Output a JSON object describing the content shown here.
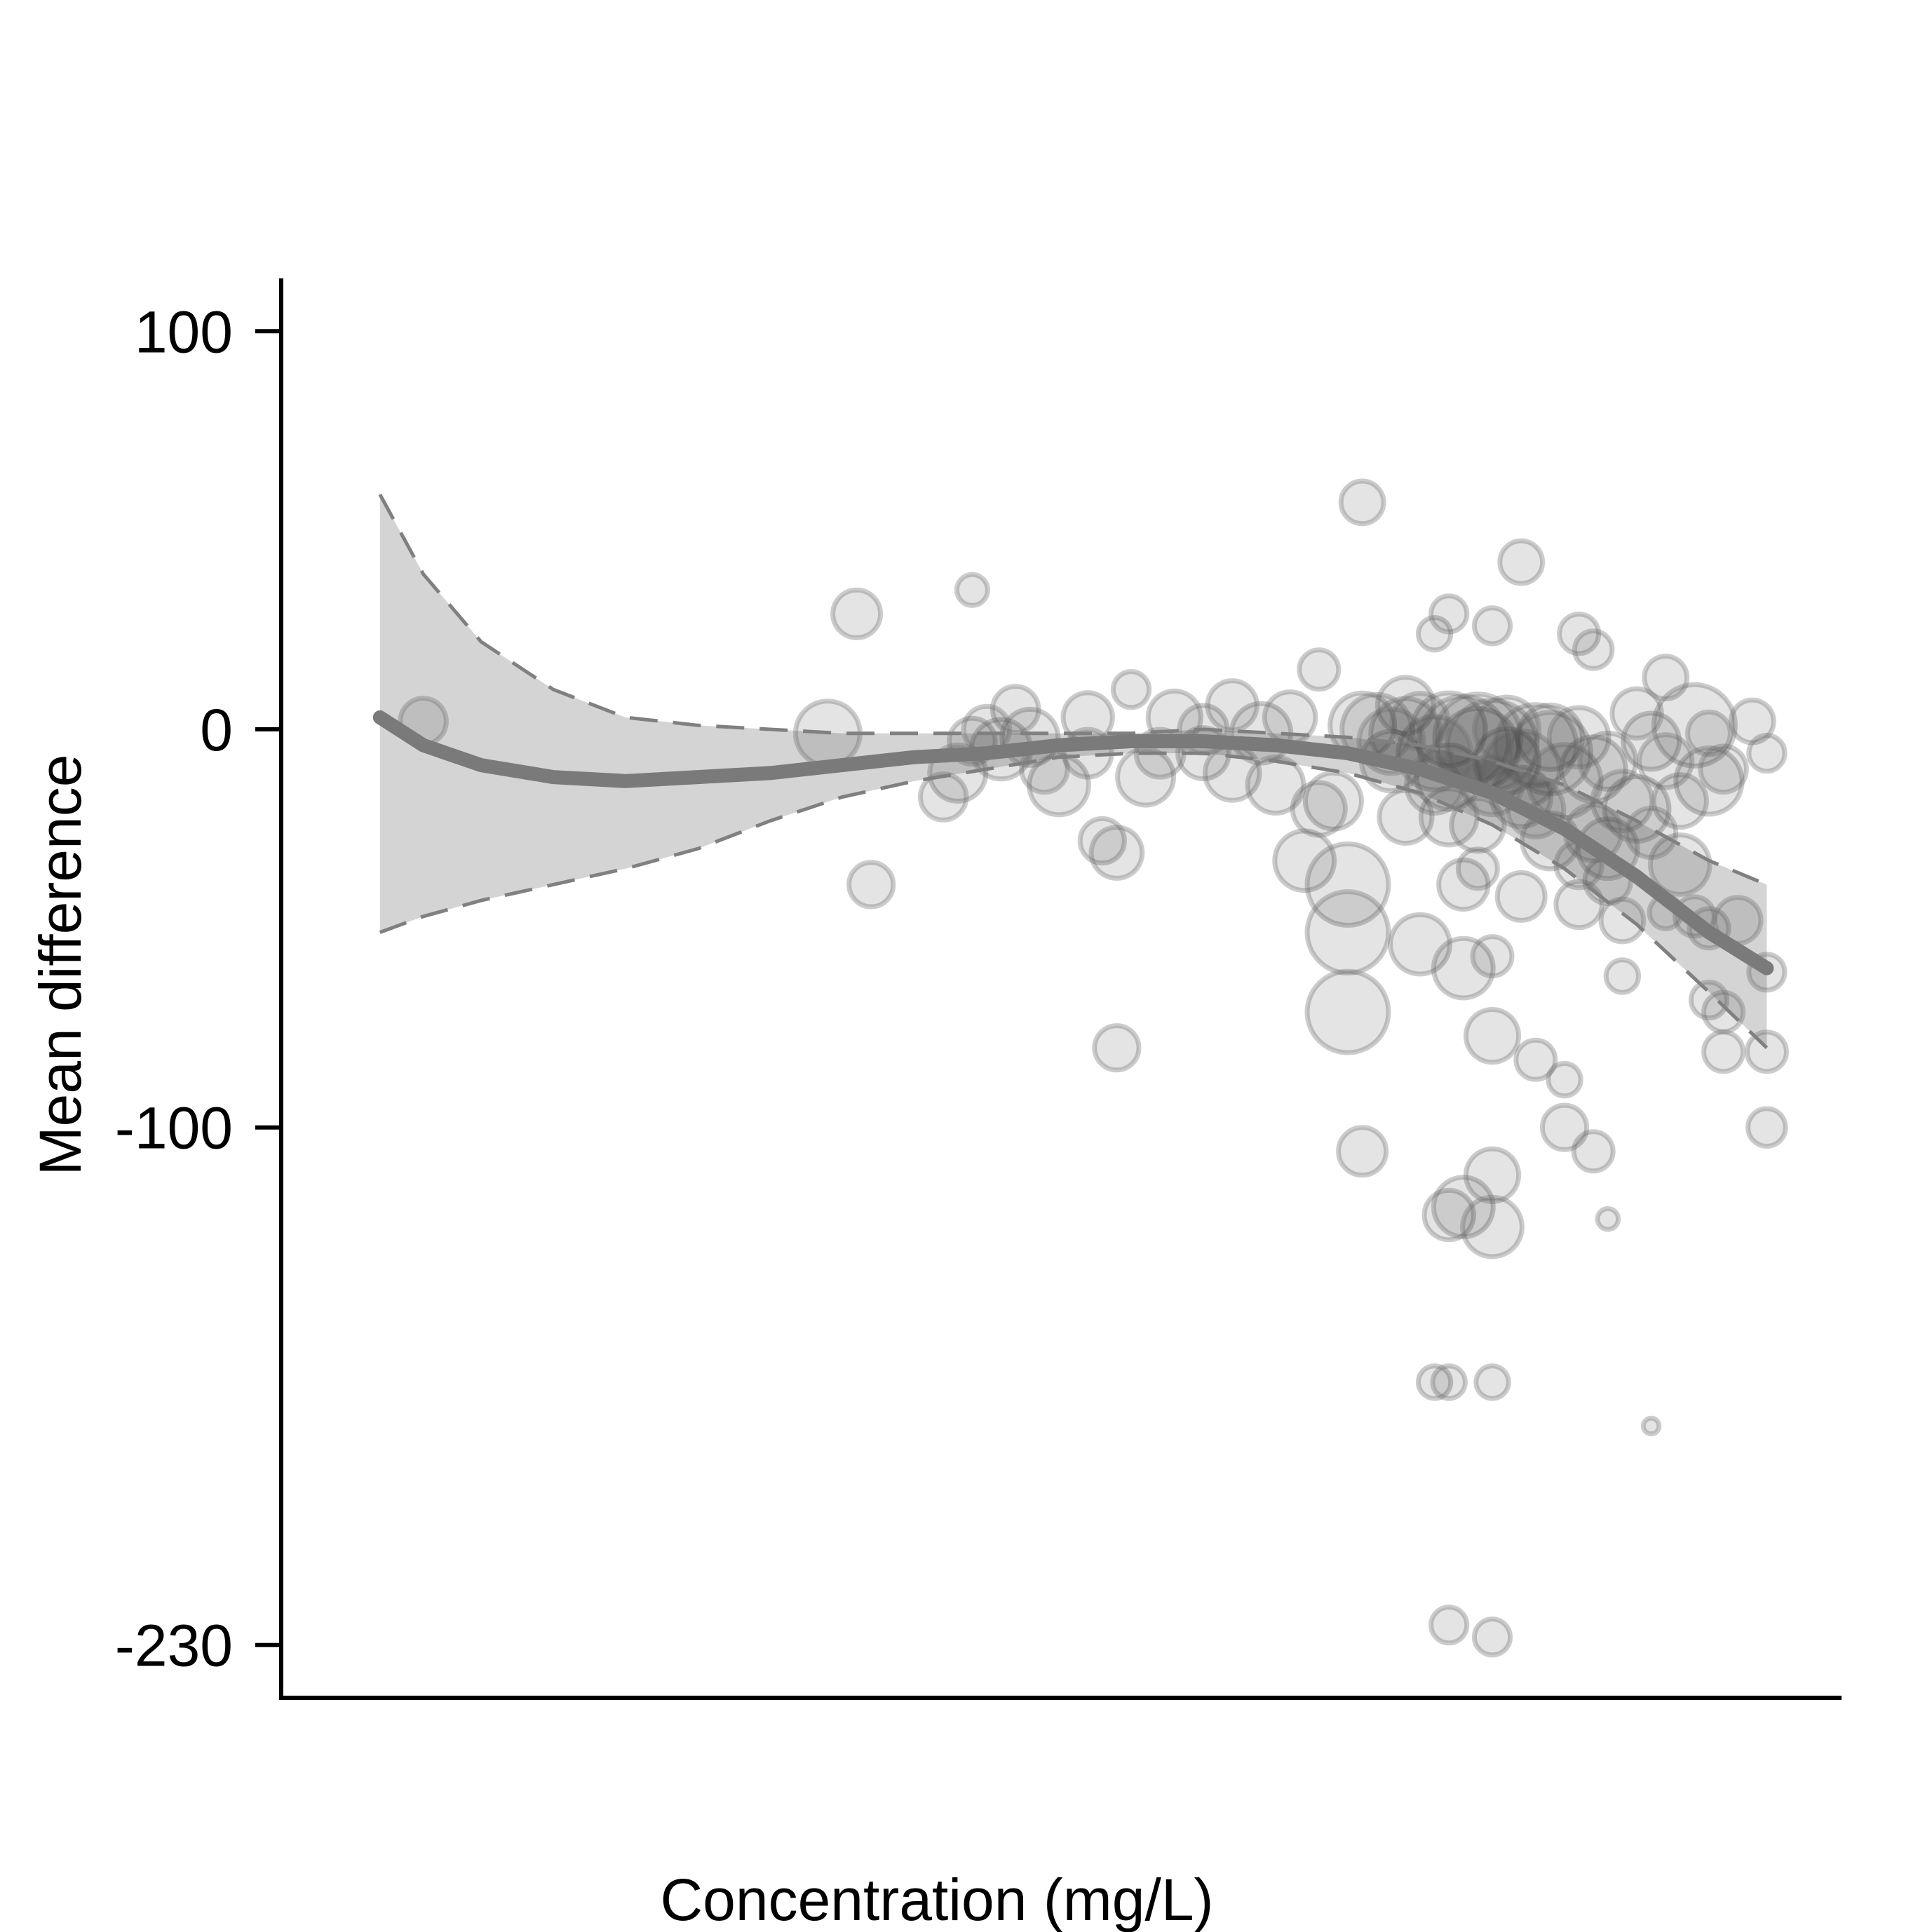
{
  "chart_data": {
    "type": "scatter",
    "title": "",
    "xlabel": "Concentration (mg/L)",
    "ylabel": "Mean difference",
    "ylim": [
      -243,
      114
    ],
    "xlim": [
      0,
      1
    ],
    "y_ticks": [
      100,
      0,
      -100,
      -230
    ],
    "y_tick_labels": [
      "100",
      "0",
      "-100",
      "-230"
    ],
    "x_ticks": [],
    "grid": false,
    "legend": "none",
    "colors": {
      "points_fill": "#2b2b2b",
      "points_stroke": "#6e6e6e",
      "band": "#d4d4d4",
      "fit_line": "#7a7a7a",
      "ci_line": "#808080",
      "axis": "#000000"
    },
    "fit": {
      "description_visible": false,
      "x": [
        0.03,
        0.06,
        0.1,
        0.15,
        0.2,
        0.25,
        0.3,
        0.35,
        0.4,
        0.45,
        0.5,
        0.55,
        0.6,
        0.65,
        0.7,
        0.75,
        0.8,
        0.85,
        0.9,
        0.95,
        0.99
      ],
      "y": [
        3,
        -4,
        -9,
        -12,
        -13,
        -12,
        -11,
        -9,
        -7,
        -6,
        -4,
        -3,
        -3,
        -4,
        -6,
        -10,
        -16,
        -25,
        -37,
        -51,
        -60
      ],
      "lower": [
        -51,
        -47,
        -43,
        -39,
        -35,
        -30,
        -23,
        -17,
        -13,
        -10,
        -7,
        -6,
        -6,
        -8,
        -11,
        -16,
        -24,
        -35,
        -49,
        -66,
        -80
      ],
      "upper": [
        59,
        39,
        22,
        10,
        3,
        1,
        0,
        -1,
        -1,
        -1,
        -1,
        -1,
        0,
        -1,
        -2,
        -4,
        -8,
        -14,
        -23,
        -33,
        -39
      ]
    },
    "points": [
      {
        "x": 0.06,
        "y": 2,
        "size": 2.4
      },
      {
        "x": 0.36,
        "y": 29,
        "size": 2.5
      },
      {
        "x": 0.37,
        "y": -39,
        "size": 2.3
      },
      {
        "x": 0.34,
        "y": -1,
        "size": 3.5
      },
      {
        "x": 0.44,
        "y": 35,
        "size": 1.5
      },
      {
        "x": 0.43,
        "y": -11,
        "size": 3.0
      },
      {
        "x": 0.42,
        "y": -17,
        "size": 2.4
      },
      {
        "x": 0.44,
        "y": -3,
        "size": 2.4
      },
      {
        "x": 0.46,
        "y": -5,
        "size": 3.2
      },
      {
        "x": 0.48,
        "y": -2,
        "size": 3.0
      },
      {
        "x": 0.5,
        "y": -14,
        "size": 3.2
      },
      {
        "x": 0.52,
        "y": 3,
        "size": 2.6
      },
      {
        "x": 0.53,
        "y": -28,
        "size": 2.3
      },
      {
        "x": 0.54,
        "y": -31,
        "size": 2.7
      },
      {
        "x": 0.55,
        "y": 10,
        "size": 1.8
      },
      {
        "x": 0.56,
        "y": -12,
        "size": 3.0
      },
      {
        "x": 0.58,
        "y": 3,
        "size": 2.8
      },
      {
        "x": 0.6,
        "y": -6,
        "size": 2.7
      },
      {
        "x": 0.62,
        "y": -11,
        "size": 2.9
      },
      {
        "x": 0.54,
        "y": -80,
        "size": 2.3
      },
      {
        "x": 0.64,
        "y": -1,
        "size": 3.2
      },
      {
        "x": 0.66,
        "y": 3,
        "size": 2.7
      },
      {
        "x": 0.67,
        "y": -33,
        "size": 3.2
      },
      {
        "x": 0.68,
        "y": 15,
        "size": 2.0
      },
      {
        "x": 0.69,
        "y": -18,
        "size": 3.0
      },
      {
        "x": 0.7,
        "y": -39,
        "size": 4.5
      },
      {
        "x": 0.7,
        "y": -51,
        "size": 4.5
      },
      {
        "x": 0.7,
        "y": -71,
        "size": 4.5
      },
      {
        "x": 0.71,
        "y": 57,
        "size": 2.2
      },
      {
        "x": 0.71,
        "y": -106,
        "size": 2.5
      },
      {
        "x": 0.71,
        "y": 1,
        "size": 3.5
      },
      {
        "x": 0.73,
        "y": -8,
        "size": 3.2
      },
      {
        "x": 0.74,
        "y": 6,
        "size": 3.0
      },
      {
        "x": 0.74,
        "y": -22,
        "size": 2.8
      },
      {
        "x": 0.75,
        "y": -54,
        "size": 3.2
      },
      {
        "x": 0.76,
        "y": 24,
        "size": 1.6
      },
      {
        "x": 0.76,
        "y": -164,
        "size": 1.6
      },
      {
        "x": 0.77,
        "y": 29,
        "size": 1.8
      },
      {
        "x": 0.77,
        "y": 0,
        "size": 4.0
      },
      {
        "x": 0.77,
        "y": -12,
        "size": 3.5
      },
      {
        "x": 0.77,
        "y": -122,
        "size": 2.6
      },
      {
        "x": 0.77,
        "y": -164,
        "size": 1.6
      },
      {
        "x": 0.77,
        "y": -225,
        "size": 1.8
      },
      {
        "x": 0.78,
        "y": -39,
        "size": 2.6
      },
      {
        "x": 0.78,
        "y": -60,
        "size": 3.2
      },
      {
        "x": 0.78,
        "y": -120,
        "size": 3.2
      },
      {
        "x": 0.79,
        "y": -5,
        "size": 4.5
      },
      {
        "x": 0.79,
        "y": -24,
        "size": 2.8
      },
      {
        "x": 0.79,
        "y": -35,
        "size": 2.0
      },
      {
        "x": 0.8,
        "y": 26,
        "size": 1.8
      },
      {
        "x": 0.8,
        "y": -57,
        "size": 2.0
      },
      {
        "x": 0.8,
        "y": -77,
        "size": 2.8
      },
      {
        "x": 0.8,
        "y": -112,
        "size": 2.8
      },
      {
        "x": 0.8,
        "y": -125,
        "size": 3.2
      },
      {
        "x": 0.8,
        "y": -164,
        "size": 1.6
      },
      {
        "x": 0.8,
        "y": -228,
        "size": 1.8
      },
      {
        "x": 0.81,
        "y": -8,
        "size": 3.5
      },
      {
        "x": 0.82,
        "y": -17,
        "size": 3.2
      },
      {
        "x": 0.82,
        "y": -42,
        "size": 2.5
      },
      {
        "x": 0.82,
        "y": 42,
        "size": 2.2
      },
      {
        "x": 0.83,
        "y": -83,
        "size": 2.0
      },
      {
        "x": 0.84,
        "y": -2,
        "size": 3.5
      },
      {
        "x": 0.84,
        "y": -28,
        "size": 3.0
      },
      {
        "x": 0.85,
        "y": -88,
        "size": 1.6
      },
      {
        "x": 0.85,
        "y": -100,
        "size": 2.3
      },
      {
        "x": 0.86,
        "y": -44,
        "size": 2.4
      },
      {
        "x": 0.86,
        "y": 24,
        "size": 2.0
      },
      {
        "x": 0.87,
        "y": 20,
        "size": 1.9
      },
      {
        "x": 0.87,
        "y": -10,
        "size": 3.5
      },
      {
        "x": 0.87,
        "y": -106,
        "size": 2.0
      },
      {
        "x": 0.88,
        "y": -30,
        "size": 3.2
      },
      {
        "x": 0.88,
        "y": -123,
        "size": 0.9
      },
      {
        "x": 0.89,
        "y": -62,
        "size": 1.6
      },
      {
        "x": 0.89,
        "y": -48,
        "size": 2.2
      },
      {
        "x": 0.9,
        "y": -20,
        "size": 3.5
      },
      {
        "x": 0.91,
        "y": -3,
        "size": 3.0
      },
      {
        "x": 0.91,
        "y": -175,
        "size": 0.6
      },
      {
        "x": 0.92,
        "y": 13,
        "size": 2.2
      },
      {
        "x": 0.92,
        "y": -46,
        "size": 1.6
      },
      {
        "x": 0.93,
        "y": -34,
        "size": 3.2
      },
      {
        "x": 0.94,
        "y": 1,
        "size": 4.5
      },
      {
        "x": 0.94,
        "y": -47,
        "size": 2.0
      },
      {
        "x": 0.95,
        "y": -68,
        "size": 1.8
      },
      {
        "x": 0.95,
        "y": -50,
        "size": 2.0
      },
      {
        "x": 0.95,
        "y": -13,
        "size": 3.6
      },
      {
        "x": 0.95,
        "y": -1,
        "size": 2.2
      },
      {
        "x": 0.96,
        "y": -71,
        "size": 2.0
      },
      {
        "x": 0.96,
        "y": -81,
        "size": 2.0
      },
      {
        "x": 0.97,
        "y": -48,
        "size": 2.4
      },
      {
        "x": 0.98,
        "y": 2,
        "size": 2.2
      },
      {
        "x": 0.99,
        "y": -6,
        "size": 1.8
      },
      {
        "x": 0.99,
        "y": -61,
        "size": 1.8
      },
      {
        "x": 0.99,
        "y": -81,
        "size": 2.0
      },
      {
        "x": 0.99,
        "y": -100,
        "size": 1.9
      },
      {
        "x": 0.78,
        "y": -3,
        "size": 5.0
      },
      {
        "x": 0.8,
        "y": -4,
        "size": 5.0
      },
      {
        "x": 0.79,
        "y": -2,
        "size": 4.8
      },
      {
        "x": 0.83,
        "y": -4,
        "size": 4.5
      },
      {
        "x": 0.84,
        "y": -6,
        "size": 4.5
      },
      {
        "x": 0.82,
        "y": -10,
        "size": 4.2
      },
      {
        "x": 0.85,
        "y": -13,
        "size": 4.0
      },
      {
        "x": 0.76,
        "y": -6,
        "size": 4.0
      },
      {
        "x": 0.74,
        "y": -1,
        "size": 3.8
      },
      {
        "x": 0.72,
        "y": 0,
        "size": 3.8
      },
      {
        "x": 0.73,
        "y": -3,
        "size": 3.5
      },
      {
        "x": 0.81,
        "y": 0,
        "size": 3.5
      },
      {
        "x": 0.86,
        "y": -2,
        "size": 3.2
      },
      {
        "x": 0.88,
        "y": -8,
        "size": 3.0
      },
      {
        "x": 0.89,
        "y": -18,
        "size": 3.2
      },
      {
        "x": 0.87,
        "y": -26,
        "size": 3.0
      },
      {
        "x": 0.83,
        "y": -20,
        "size": 3.0
      },
      {
        "x": 0.8,
        "y": -14,
        "size": 3.2
      },
      {
        "x": 0.77,
        "y": -22,
        "size": 3.0
      },
      {
        "x": 0.76,
        "y": -14,
        "size": 3.0
      },
      {
        "x": 0.75,
        "y": 2,
        "size": 3.0
      },
      {
        "x": 0.65,
        "y": -14,
        "size": 3.0
      },
      {
        "x": 0.6,
        "y": 0,
        "size": 2.5
      },
      {
        "x": 0.57,
        "y": -6,
        "size": 2.5
      },
      {
        "x": 0.52,
        "y": -6,
        "size": 2.5
      },
      {
        "x": 0.49,
        "y": -10,
        "size": 2.4
      },
      {
        "x": 0.47,
        "y": 5,
        "size": 2.4
      },
      {
        "x": 0.45,
        "y": 0,
        "size": 2.4
      },
      {
        "x": 0.62,
        "y": 6,
        "size": 2.6
      },
      {
        "x": 0.68,
        "y": -20,
        "size": 2.8
      },
      {
        "x": 0.93,
        "y": -18,
        "size": 2.8
      },
      {
        "x": 0.91,
        "y": -26,
        "size": 2.6
      },
      {
        "x": 0.88,
        "y": -38,
        "size": 2.4
      },
      {
        "x": 0.86,
        "y": -34,
        "size": 2.4
      },
      {
        "x": 0.92,
        "y": -8,
        "size": 2.8
      },
      {
        "x": 0.9,
        "y": 4,
        "size": 2.6
      },
      {
        "x": 0.96,
        "y": -10,
        "size": 2.4
      }
    ]
  }
}
